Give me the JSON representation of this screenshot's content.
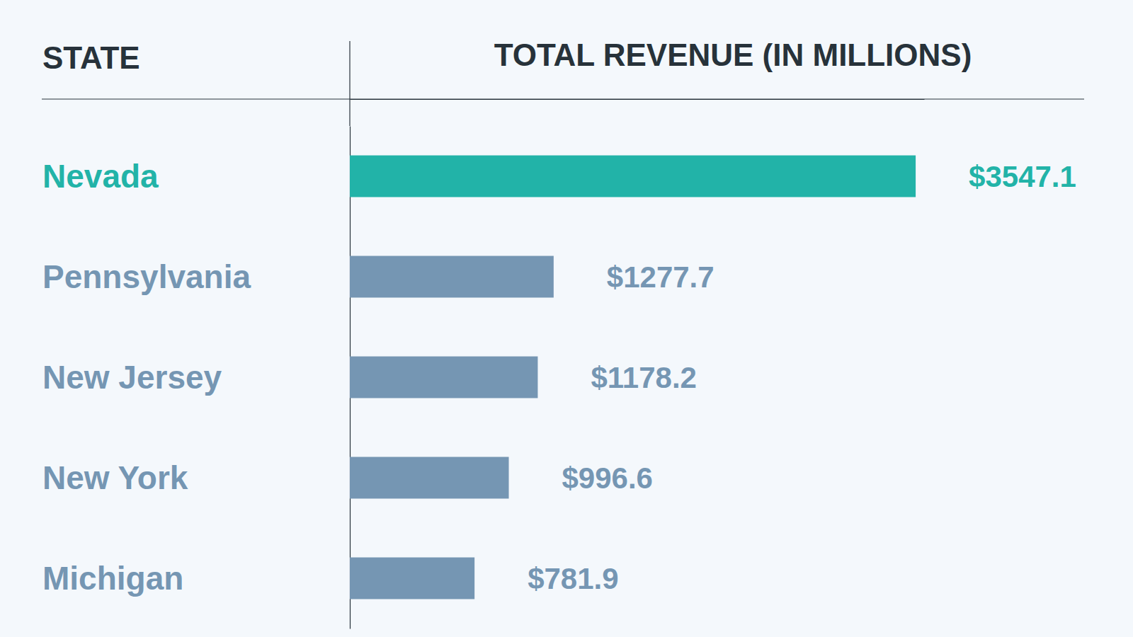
{
  "chart_data": {
    "type": "bar",
    "orientation": "horizontal",
    "y_label": "STATE",
    "x_label": "TOTAL REVENUE (IN MILLIONS)",
    "categories": [
      "Nevada",
      "Pennsylvania",
      "New Jersey",
      "New York",
      "Michigan"
    ],
    "values": [
      3547.1,
      1277.7,
      1178.2,
      996.6,
      781.9
    ],
    "value_labels": [
      "$3547.1",
      "$1277.7",
      "$1178.2",
      "$996.6",
      "$781.9"
    ],
    "colors": [
      "#22b3a8",
      "#7596b3",
      "#7596b3",
      "#7596b3",
      "#7596b3"
    ],
    "xlim": [
      0,
      3600
    ],
    "xticks": [],
    "data_labels": true,
    "tick_labels": "y",
    "grid": false
  }
}
